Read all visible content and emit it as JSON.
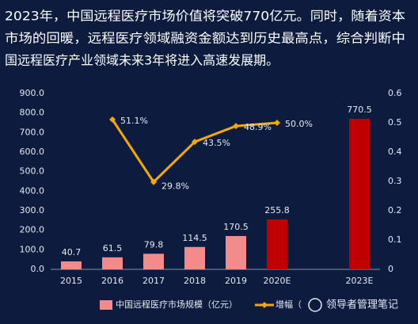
{
  "headline": [
    "2023年，中国远程医疗市场价值将突破770亿元。同时，随着资本",
    "市场的回暖，远程医疗领域融资金额达到历史最高点，综合判断中",
    "国远程医疗产业领域未来3年将进入高速发展期。"
  ],
  "chart_data": {
    "type": "bar_line",
    "categories": [
      "2015",
      "2016",
      "2017",
      "2018",
      "2019",
      "2020E",
      null,
      "2023E"
    ],
    "series": [
      {
        "name": "中国远程医疗市场规模（亿元）",
        "type": "bar",
        "color": "#f38a8c",
        "colors": [
          "#f38a8c",
          "#f38a8c",
          "#f38a8c",
          "#f38a8c",
          "#f38a8c",
          "#c00000",
          null,
          "#c00000"
        ],
        "values": [
          40.7,
          61.5,
          79.8,
          114.5,
          170.5,
          255.8,
          null,
          770.5
        ]
      },
      {
        "name": "增幅（%）",
        "type": "line",
        "axis": "y2",
        "color": "#f5a800",
        "values": [
          null,
          0.511,
          0.298,
          0.435,
          0.489,
          0.5,
          null,
          null
        ],
        "value_labels": [
          null,
          "51.1%",
          "29.8%",
          "43.5%",
          "48.9%",
          "50.0%",
          null,
          null
        ]
      }
    ],
    "ylim": [
      0,
      900
    ],
    "yticks": [
      {
        "value": 0,
        "label": "0.0"
      },
      {
        "value": 100,
        "label": "100.0"
      },
      {
        "value": 200,
        "label": "200.0"
      },
      {
        "value": 300,
        "label": "300.0"
      },
      {
        "value": 400,
        "label": "400.0"
      },
      {
        "value": 500,
        "label": "500.0"
      },
      {
        "value": 600,
        "label": "600.0"
      },
      {
        "value": 700,
        "label": "700.0"
      },
      {
        "value": 800,
        "label": "800.0"
      },
      {
        "value": 900,
        "label": "900.0"
      }
    ],
    "y2lim": [
      0,
      0.6
    ],
    "y2ticks": [
      0,
      0.1,
      0.2,
      0.3,
      0.4,
      0.5,
      0.6
    ],
    "legend": "bottom",
    "watermark": "领导者管理笔记"
  }
}
